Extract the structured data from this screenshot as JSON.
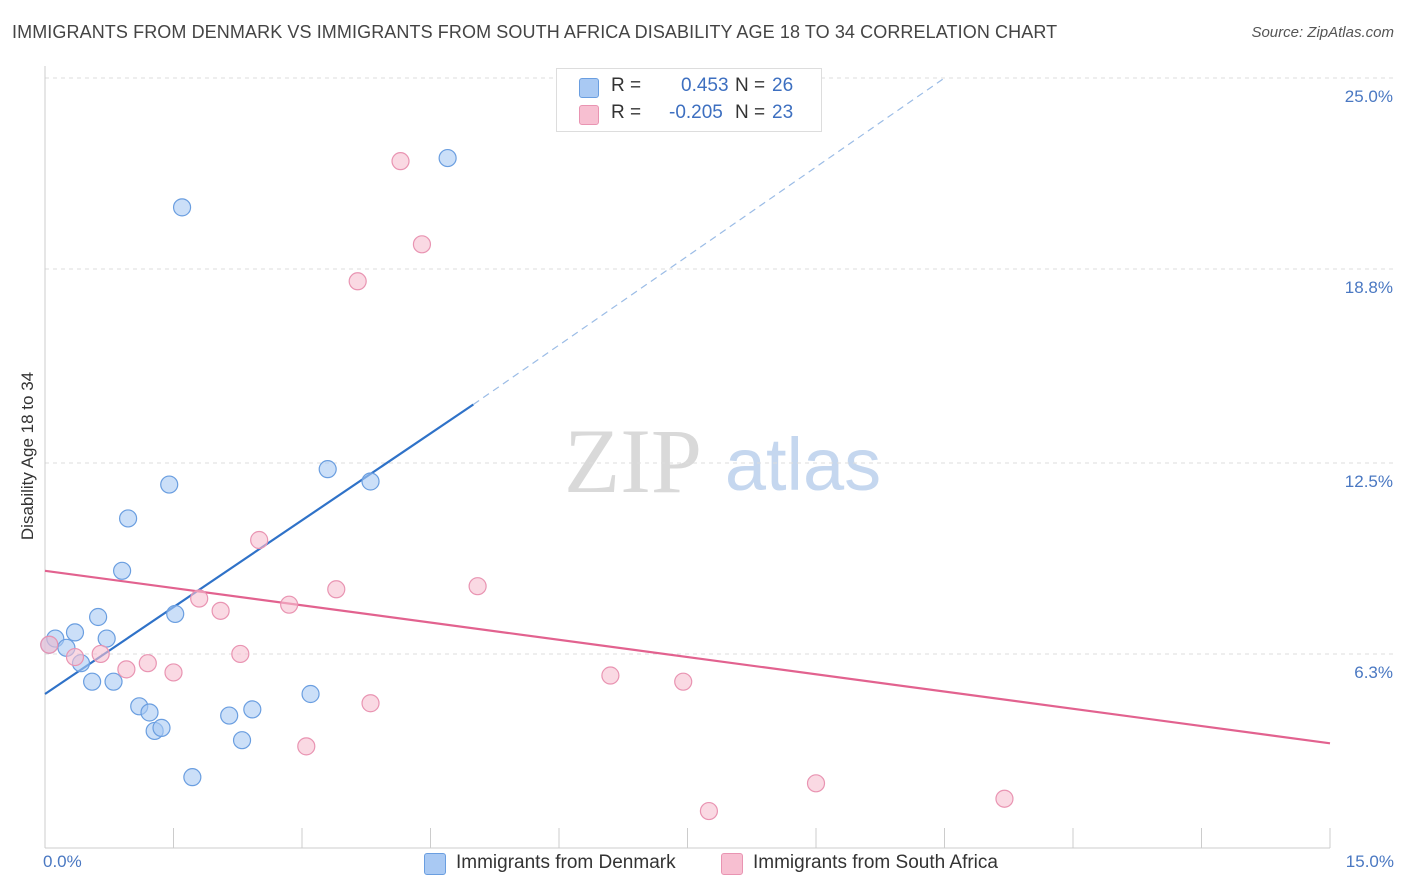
{
  "header": {
    "title": "IMMIGRANTS FROM DENMARK VS IMMIGRANTS FROM SOUTH AFRICA DISABILITY AGE 18 TO 34 CORRELATION CHART",
    "source": "Source: ZipAtlas.com"
  },
  "watermark": {
    "zip": "ZIP",
    "atlas": "atlas"
  },
  "legend": {
    "r_label": "R =",
    "n_label": "N =",
    "denmark": {
      "r": "0.453",
      "n": "26"
    },
    "south_africa": {
      "r": "-0.205",
      "n": "23"
    }
  },
  "bottom_legend": {
    "denmark": "Immigrants from Denmark",
    "south_africa": "Immigrants from South Africa"
  },
  "colors": {
    "denmark_fill": "#a9c9f3",
    "denmark_stroke": "#6a9ee0",
    "denmark_line": "#2f72c8",
    "south_africa_fill": "#f7bfd1",
    "south_africa_stroke": "#e994b2",
    "south_africa_line": "#e2628f",
    "grid": "#dddddd",
    "tick_label": "#4a78c2"
  },
  "chart_data": {
    "type": "scatter",
    "title": "IMMIGRANTS FROM DENMARK VS IMMIGRANTS FROM SOUTH AFRICA DISABILITY AGE 18 TO 34 CORRELATION CHART",
    "xlabel": "",
    "ylabel": "Disability Age 18 to 34",
    "xlim": [
      0,
      15
    ],
    "ylim": [
      0,
      25
    ],
    "x_tick_labels": [
      {
        "value": 0,
        "label": "0.0%"
      },
      {
        "value": 15,
        "label": "15.0%"
      }
    ],
    "y_tick_labels": [
      {
        "value": 6.3,
        "label": "6.3%"
      },
      {
        "value": 12.5,
        "label": "12.5%"
      },
      {
        "value": 18.8,
        "label": "18.8%"
      },
      {
        "value": 25.0,
        "label": "25.0%"
      }
    ],
    "grid": true,
    "legend_position": "top-center",
    "series": [
      {
        "name": "Immigrants from Denmark",
        "r": 0.453,
        "n": 26,
        "trend": {
          "x": [
            0,
            5
          ],
          "y": [
            5.0,
            14.4
          ],
          "extended_to": [
            10.5,
            25.0
          ]
        },
        "points": [
          [
            0.05,
            6.6
          ],
          [
            0.12,
            6.8
          ],
          [
            0.25,
            6.5
          ],
          [
            0.35,
            7.0
          ],
          [
            0.42,
            6.0
          ],
          [
            0.55,
            5.4
          ],
          [
            0.62,
            7.5
          ],
          [
            0.72,
            6.8
          ],
          [
            0.8,
            5.4
          ],
          [
            0.9,
            9.0
          ],
          [
            0.97,
            10.7
          ],
          [
            1.1,
            4.6
          ],
          [
            1.22,
            4.4
          ],
          [
            1.28,
            3.8
          ],
          [
            1.36,
            3.9
          ],
          [
            1.45,
            11.8
          ],
          [
            1.52,
            7.6
          ],
          [
            1.6,
            20.8
          ],
          [
            1.72,
            2.3
          ],
          [
            2.15,
            4.3
          ],
          [
            2.3,
            3.5
          ],
          [
            2.42,
            4.5
          ],
          [
            3.1,
            5.0
          ],
          [
            3.3,
            12.3
          ],
          [
            3.8,
            11.9
          ],
          [
            4.7,
            22.4
          ]
        ]
      },
      {
        "name": "Immigrants from South Africa",
        "r": -0.205,
        "n": 23,
        "trend": {
          "x": [
            0,
            15
          ],
          "y": [
            9.0,
            3.4
          ]
        },
        "points": [
          [
            0.05,
            6.6
          ],
          [
            0.35,
            6.2
          ],
          [
            0.65,
            6.3
          ],
          [
            0.95,
            5.8
          ],
          [
            1.2,
            6.0
          ],
          [
            1.5,
            5.7
          ],
          [
            1.8,
            8.1
          ],
          [
            2.05,
            7.7
          ],
          [
            2.28,
            6.3
          ],
          [
            2.5,
            10.0
          ],
          [
            2.85,
            7.9
          ],
          [
            3.05,
            3.3
          ],
          [
            3.4,
            8.4
          ],
          [
            3.65,
            18.4
          ],
          [
            3.8,
            4.7
          ],
          [
            4.15,
            22.3
          ],
          [
            4.4,
            19.6
          ],
          [
            5.05,
            8.5
          ],
          [
            6.6,
            5.6
          ],
          [
            7.45,
            5.4
          ],
          [
            7.75,
            1.2
          ],
          [
            9.0,
            2.1
          ],
          [
            11.2,
            1.6
          ]
        ]
      }
    ]
  }
}
